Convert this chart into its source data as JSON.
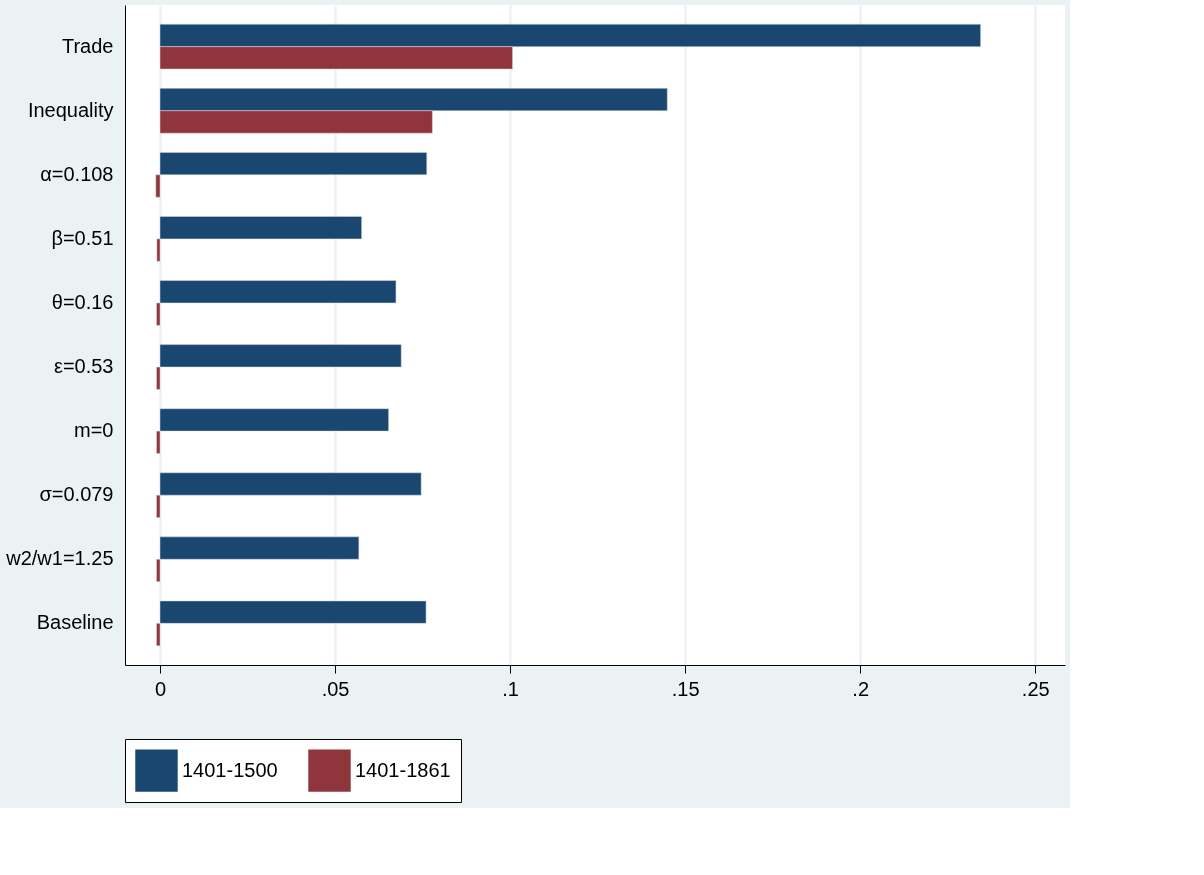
{
  "chart_data": {
    "type": "bar",
    "orientation": "horizontal",
    "categories": [
      "Trade",
      "Inequality",
      "α=0.108",
      "β=0.51",
      "θ=0.16",
      "ε=0.53",
      "m=0",
      "σ=0.079",
      "w2/w1=1.25",
      "Baseline"
    ],
    "series": [
      {
        "name": "1401-1500",
        "color": "#1a476f",
        "values": [
          0.2344,
          0.1449,
          0.0762,
          0.0576,
          0.0674,
          0.0689,
          0.0653,
          0.0746,
          0.0568,
          0.076
        ]
      },
      {
        "name": "1401-1861",
        "color": "#90353b",
        "values": [
          0.1007,
          0.0778,
          -0.0012,
          -0.0009,
          -0.001,
          -0.001,
          -0.001,
          -0.001,
          -0.001,
          -0.001
        ]
      }
    ],
    "xlim": [
      -0.01,
      0.2585
    ],
    "xticks": [
      0,
      {
        "value": 0.05,
        "label": ".05"
      },
      {
        "value": 0.1,
        "label": ".1"
      },
      {
        "value": 0.15,
        "label": ".15"
      },
      {
        "value": 0.2,
        "label": ".2"
      },
      {
        "value": 0.25,
        "label": ".25"
      }
    ],
    "grid": "x",
    "legend": "bottom"
  }
}
